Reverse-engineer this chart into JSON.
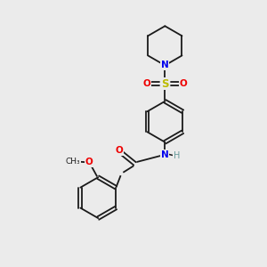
{
  "bg_color": "#ebebeb",
  "bond_color": "#1a1a1a",
  "colors": {
    "N": "#0000ee",
    "O": "#ee0000",
    "S": "#bbbb00",
    "C": "#1a1a1a",
    "H": "#669999"
  },
  "lw": 1.3,
  "fs": 7.5
}
